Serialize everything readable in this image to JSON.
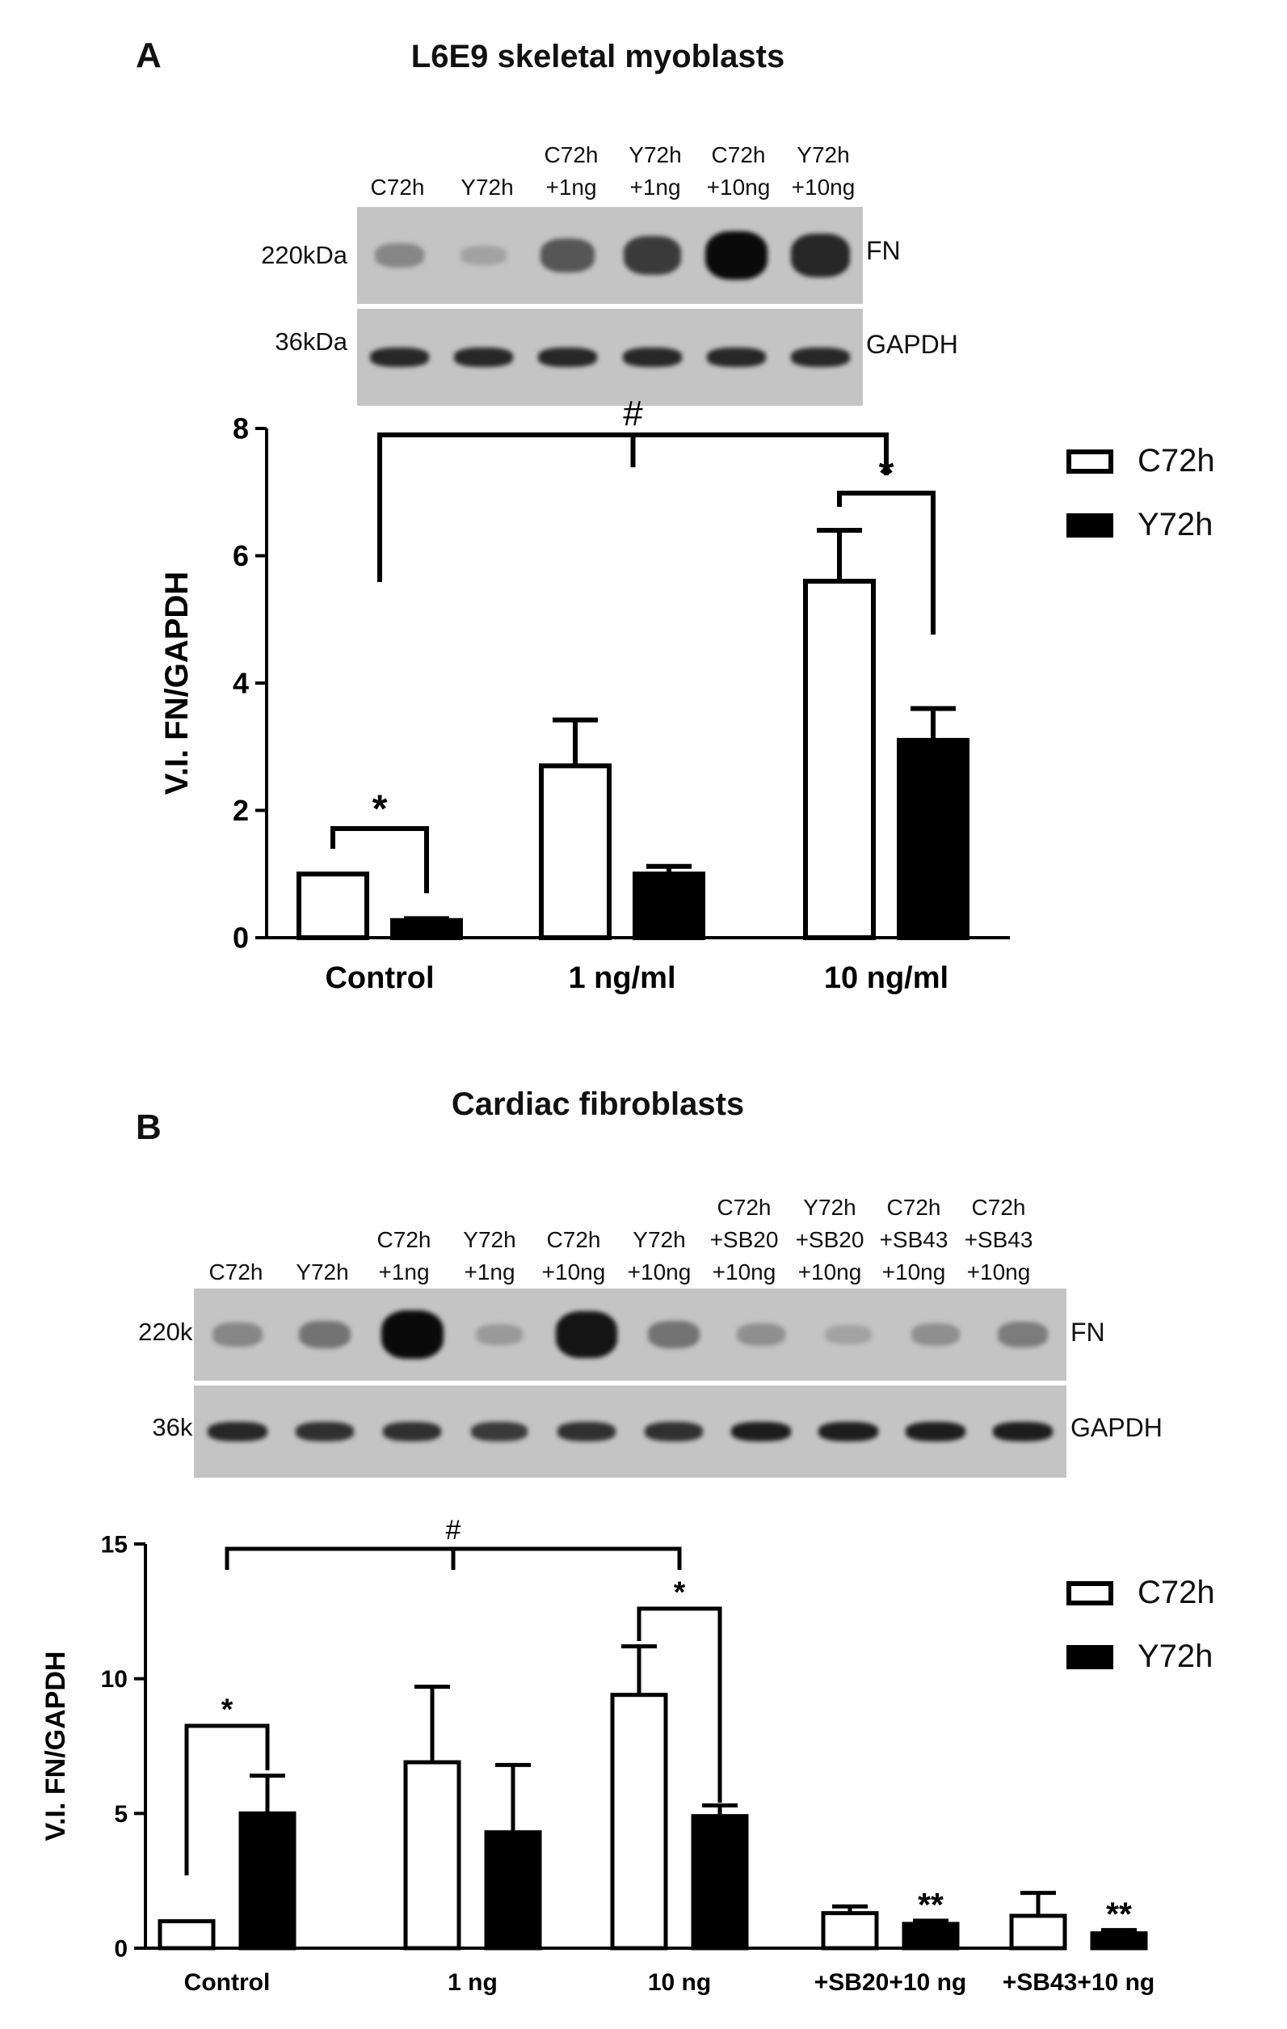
{
  "panel_a": {
    "label": "A",
    "title": "L6E9 skeletal myoblasts",
    "blot": {
      "lanes": [
        [
          "C72h"
        ],
        [
          "Y72h"
        ],
        [
          "C72h",
          "+1ng"
        ],
        [
          "Y72h",
          "+1ng"
        ],
        [
          "C72h",
          "+10ng"
        ],
        [
          "Y72h",
          "+10ng"
        ]
      ],
      "rows": [
        {
          "kda": "220kDa",
          "protein": "FN"
        },
        {
          "kda": "36kDa",
          "protein": "GAPDH"
        }
      ],
      "fn_intensity": [
        0.35,
        0.2,
        0.6,
        0.75,
        1.0,
        0.85
      ],
      "gapdh_intensity": [
        0.85,
        0.85,
        0.85,
        0.85,
        0.85,
        0.85
      ]
    },
    "legend": {
      "c72h": "C72h",
      "y72h": "Y72h"
    }
  },
  "panel_b": {
    "label": "B",
    "title": "Cardiac fibroblasts",
    "blot": {
      "lanes": [
        [
          "C72h"
        ],
        [
          "Y72h"
        ],
        [
          "C72h",
          "+1ng"
        ],
        [
          "Y72h",
          "+1ng"
        ],
        [
          "C72h",
          "+10ng"
        ],
        [
          "Y72h",
          "+10ng"
        ],
        [
          "C72h",
          "+SB20",
          "+10ng"
        ],
        [
          "Y72h",
          "+SB20",
          "+10ng"
        ],
        [
          "C72h",
          "+SB43",
          "+10ng"
        ],
        [
          "C72h",
          "+SB43",
          "+10ng"
        ]
      ],
      "rows": [
        {
          "kda": "220kDa",
          "protein": "FN"
        },
        {
          "kda": "36kDa",
          "protein": "GAPDH"
        }
      ],
      "fn_intensity": [
        0.35,
        0.45,
        1.0,
        0.25,
        0.95,
        0.45,
        0.3,
        0.2,
        0.3,
        0.4
      ],
      "gapdh_intensity": [
        0.85,
        0.8,
        0.8,
        0.75,
        0.8,
        0.8,
        0.9,
        0.9,
        0.9,
        0.9
      ]
    },
    "legend": {
      "c72h": "C72h",
      "y72h": "Y72h"
    }
  },
  "chart_data": [
    {
      "type": "bar",
      "ylabel": "V.I. FN/GAPDH",
      "ylim": [
        0,
        8
      ],
      "yticks": [
        0,
        2,
        4,
        6,
        8
      ],
      "categories": [
        "Control",
        "1 ng/ml",
        "10 ng/ml"
      ],
      "series": [
        {
          "name": "C72h",
          "values": [
            1.0,
            2.7,
            5.6
          ],
          "errors": [
            0,
            0.72,
            0.8
          ]
        },
        {
          "name": "Y72h",
          "values": [
            0.27,
            1.0,
            3.1
          ],
          "errors": [
            0.03,
            0.12,
            0.5
          ]
        }
      ],
      "annotations": [
        {
          "type": "bracket",
          "text": "#",
          "from": "Control",
          "to": "10 ng/ml"
        },
        {
          "type": "bracket",
          "text": "*",
          "group": "Control"
        },
        {
          "type": "bracket",
          "text": "*",
          "group": "10 ng/ml"
        }
      ],
      "legend_position": "top-right"
    },
    {
      "type": "bar",
      "ylabel": "V.I. FN/GAPDH",
      "ylim": [
        0,
        15
      ],
      "yticks": [
        0,
        5,
        10,
        15
      ],
      "categories": [
        "Control",
        "1 ng",
        "10 ng",
        "+SB20+10 ng",
        "+SB43+10 ng"
      ],
      "series": [
        {
          "name": "C72h",
          "values": [
            1.0,
            6.9,
            9.4,
            1.3,
            1.2
          ],
          "errors": [
            0,
            2.8,
            1.8,
            0.25,
            0.85
          ]
        },
        {
          "name": "Y72h",
          "values": [
            5.0,
            4.3,
            4.9,
            0.9,
            0.55
          ],
          "errors": [
            1.4,
            2.5,
            0.4,
            0.12,
            0.12
          ]
        }
      ],
      "annotations": [
        {
          "type": "bracket",
          "text": "#",
          "from": "Control",
          "to": "10 ng"
        },
        {
          "type": "bracket",
          "text": "*",
          "group": "Control"
        },
        {
          "type": "bracket",
          "text": "*",
          "group": "10 ng"
        },
        {
          "type": "mark",
          "text": "**",
          "group": "+SB20+10 ng",
          "series": "Y72h"
        },
        {
          "type": "mark",
          "text": "**",
          "group": "+SB43+10 ng",
          "series": "Y72h"
        }
      ],
      "legend_position": "top-right"
    }
  ]
}
